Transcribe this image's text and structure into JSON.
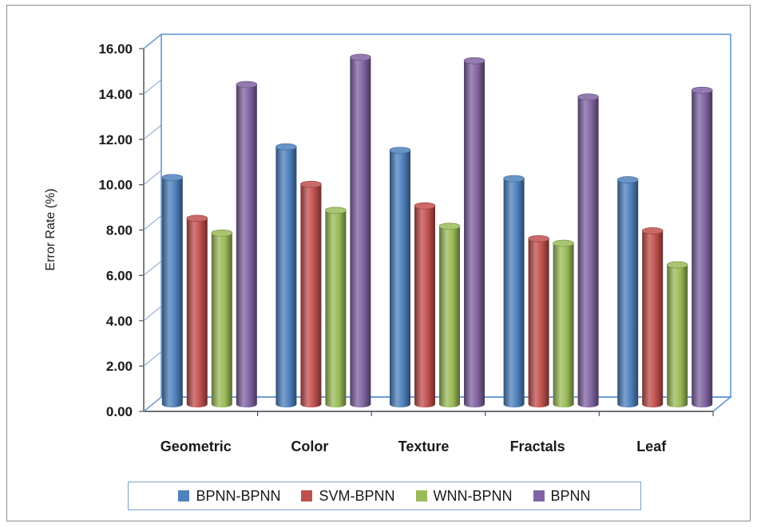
{
  "chart_data": {
    "type": "bar",
    "categories": [
      "Geometric",
      "Color",
      "Texture",
      "Fractals",
      "Leaf"
    ],
    "series": [
      {
        "name": "BPNN-BPNN",
        "color": "#4f81bd",
        "values": [
          10.0,
          11.35,
          11.2,
          9.95,
          9.9
        ]
      },
      {
        "name": "SVM-BPNN",
        "color": "#c0504d",
        "values": [
          8.2,
          9.7,
          8.75,
          7.3,
          7.65
        ]
      },
      {
        "name": "WNN-BPNN",
        "color": "#9bbb59",
        "values": [
          7.55,
          8.55,
          7.85,
          7.1,
          6.15
        ]
      },
      {
        "name": "BPNN",
        "color": "#8064a2",
        "values": [
          14.1,
          15.3,
          15.15,
          13.55,
          13.85
        ]
      }
    ],
    "ylabel": "Error Rate (%)",
    "xlabel": "",
    "ylim": [
      0,
      16
    ],
    "yticks": [
      "0.00",
      "2.00",
      "4.00",
      "6.00",
      "8.00",
      "10.00",
      "12.00",
      "14.00",
      "16.00"
    ],
    "legend_position": "bottom",
    "grid": false,
    "style": "3d-cylinder"
  }
}
